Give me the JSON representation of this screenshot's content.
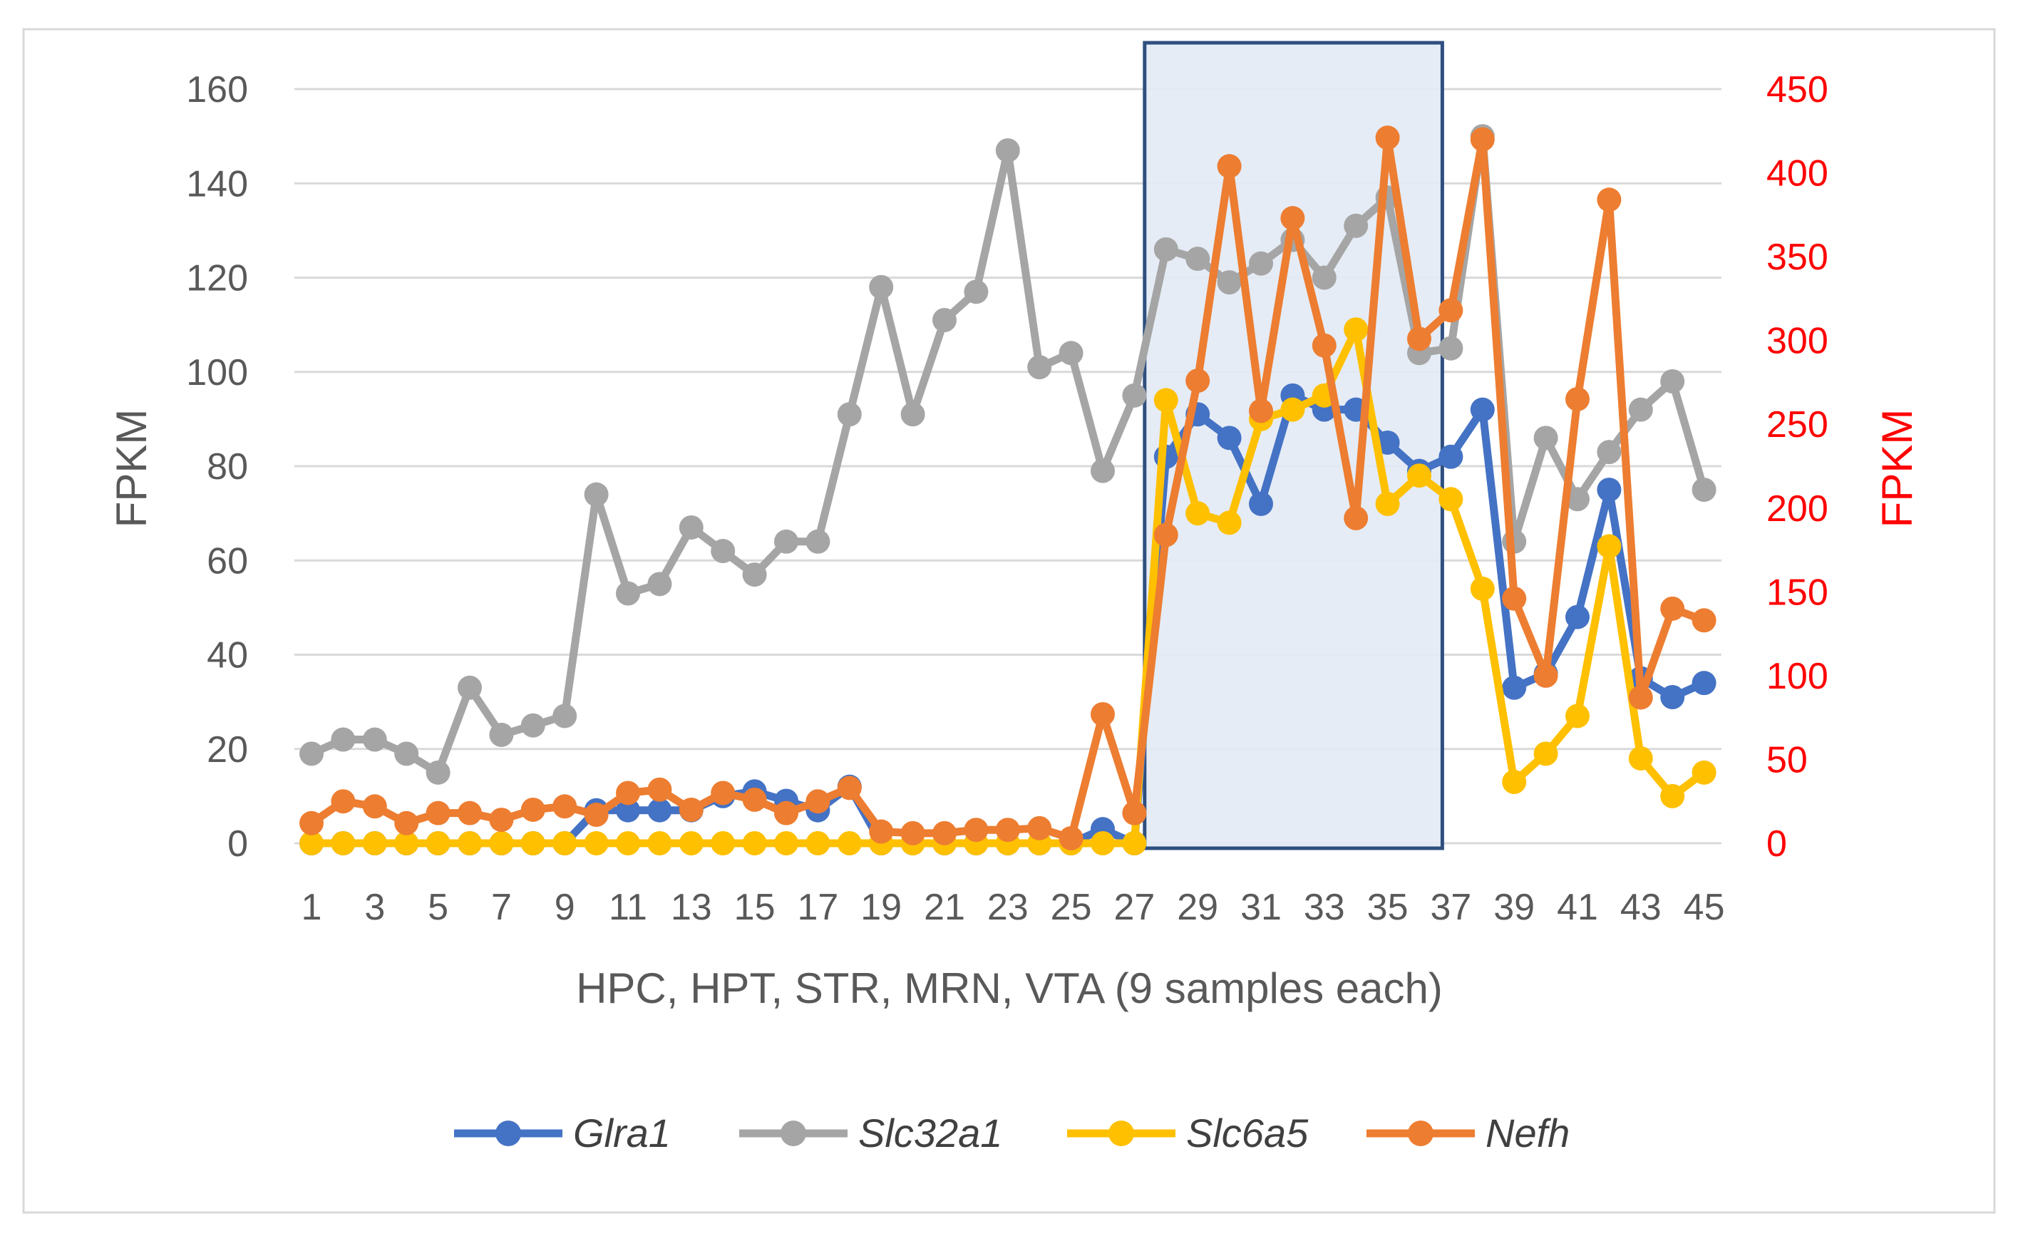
{
  "chart_data": {
    "type": "line",
    "title": "",
    "xlabel": "HPC, HPT, STR, MRN, VTA (9 samples each)",
    "ylabel": "FPKM",
    "y2label": "FPKM",
    "ylim": [
      0,
      160
    ],
    "y2lim": [
      0,
      450
    ],
    "yticks": [
      0,
      20,
      40,
      60,
      80,
      100,
      120,
      140,
      160
    ],
    "y2ticks": [
      0,
      50,
      100,
      150,
      200,
      250,
      300,
      350,
      400,
      450
    ],
    "x": [
      1,
      2,
      3,
      4,
      5,
      6,
      7,
      8,
      9,
      10,
      11,
      12,
      13,
      14,
      15,
      16,
      17,
      18,
      19,
      20,
      21,
      22,
      23,
      24,
      25,
      26,
      27,
      28,
      29,
      30,
      31,
      32,
      33,
      34,
      35,
      36,
      37,
      38,
      39,
      40,
      41,
      42,
      43,
      44,
      45
    ],
    "xtick_labels": [
      "1",
      "3",
      "5",
      "7",
      "9",
      "11",
      "13",
      "15",
      "17",
      "19",
      "21",
      "23",
      "25",
      "27",
      "29",
      "31",
      "33",
      "35",
      "37",
      "39",
      "41",
      "43",
      "45"
    ],
    "highlight": {
      "x_from": 28,
      "x_to": 37,
      "fill": "#e2eaf5",
      "stroke": "#2f4f7f"
    },
    "legend_position": "bottom",
    "series": [
      {
        "name": "Glra1",
        "axis": "left",
        "color": "#4472c4",
        "values": [
          0,
          0,
          0,
          0,
          0,
          0,
          0,
          0,
          0,
          7,
          7,
          7,
          7,
          10,
          11,
          9,
          7,
          12,
          0,
          0,
          0,
          0,
          0,
          0,
          0,
          3,
          0,
          82,
          91,
          86,
          72,
          95,
          92,
          92,
          85,
          79,
          82,
          92,
          33,
          36,
          48,
          75,
          35,
          31,
          34
        ]
      },
      {
        "name": "Slc32a1",
        "axis": "left",
        "color": "#a5a5a5",
        "values": [
          19,
          22,
          22,
          19,
          15,
          33,
          23,
          25,
          27,
          74,
          53,
          55,
          67,
          62,
          57,
          64,
          64,
          91,
          118,
          91,
          111,
          117,
          147,
          101,
          104,
          79,
          95,
          126,
          124,
          119,
          123,
          128,
          120,
          131,
          137,
          104,
          105,
          150,
          64,
          86,
          73,
          83,
          92,
          98,
          75
        ]
      },
      {
        "name": "Slc6a5",
        "axis": "left",
        "color": "#ffc000",
        "values": [
          0,
          0,
          0,
          0,
          0,
          0,
          0,
          0,
          0,
          0,
          0,
          0,
          0,
          0,
          0,
          0,
          0,
          0,
          0,
          0,
          0,
          0,
          0,
          0,
          0,
          0,
          0,
          94,
          70,
          68,
          90,
          92,
          95,
          109,
          72,
          78,
          73,
          54,
          13,
          19,
          27,
          63,
          18,
          10,
          15
        ]
      },
      {
        "name": "Nefh",
        "axis": "right",
        "color": "#ed7d31",
        "values": [
          12,
          25,
          22,
          12,
          18,
          18,
          14,
          20,
          22,
          17,
          30,
          32,
          20,
          30,
          26,
          18,
          25,
          33,
          7,
          6,
          6,
          8,
          8,
          9,
          3,
          77,
          18,
          184,
          276,
          404,
          258,
          373,
          297,
          194,
          421,
          301,
          318,
          420,
          146,
          100,
          265,
          384,
          87,
          140,
          133
        ]
      }
    ]
  }
}
